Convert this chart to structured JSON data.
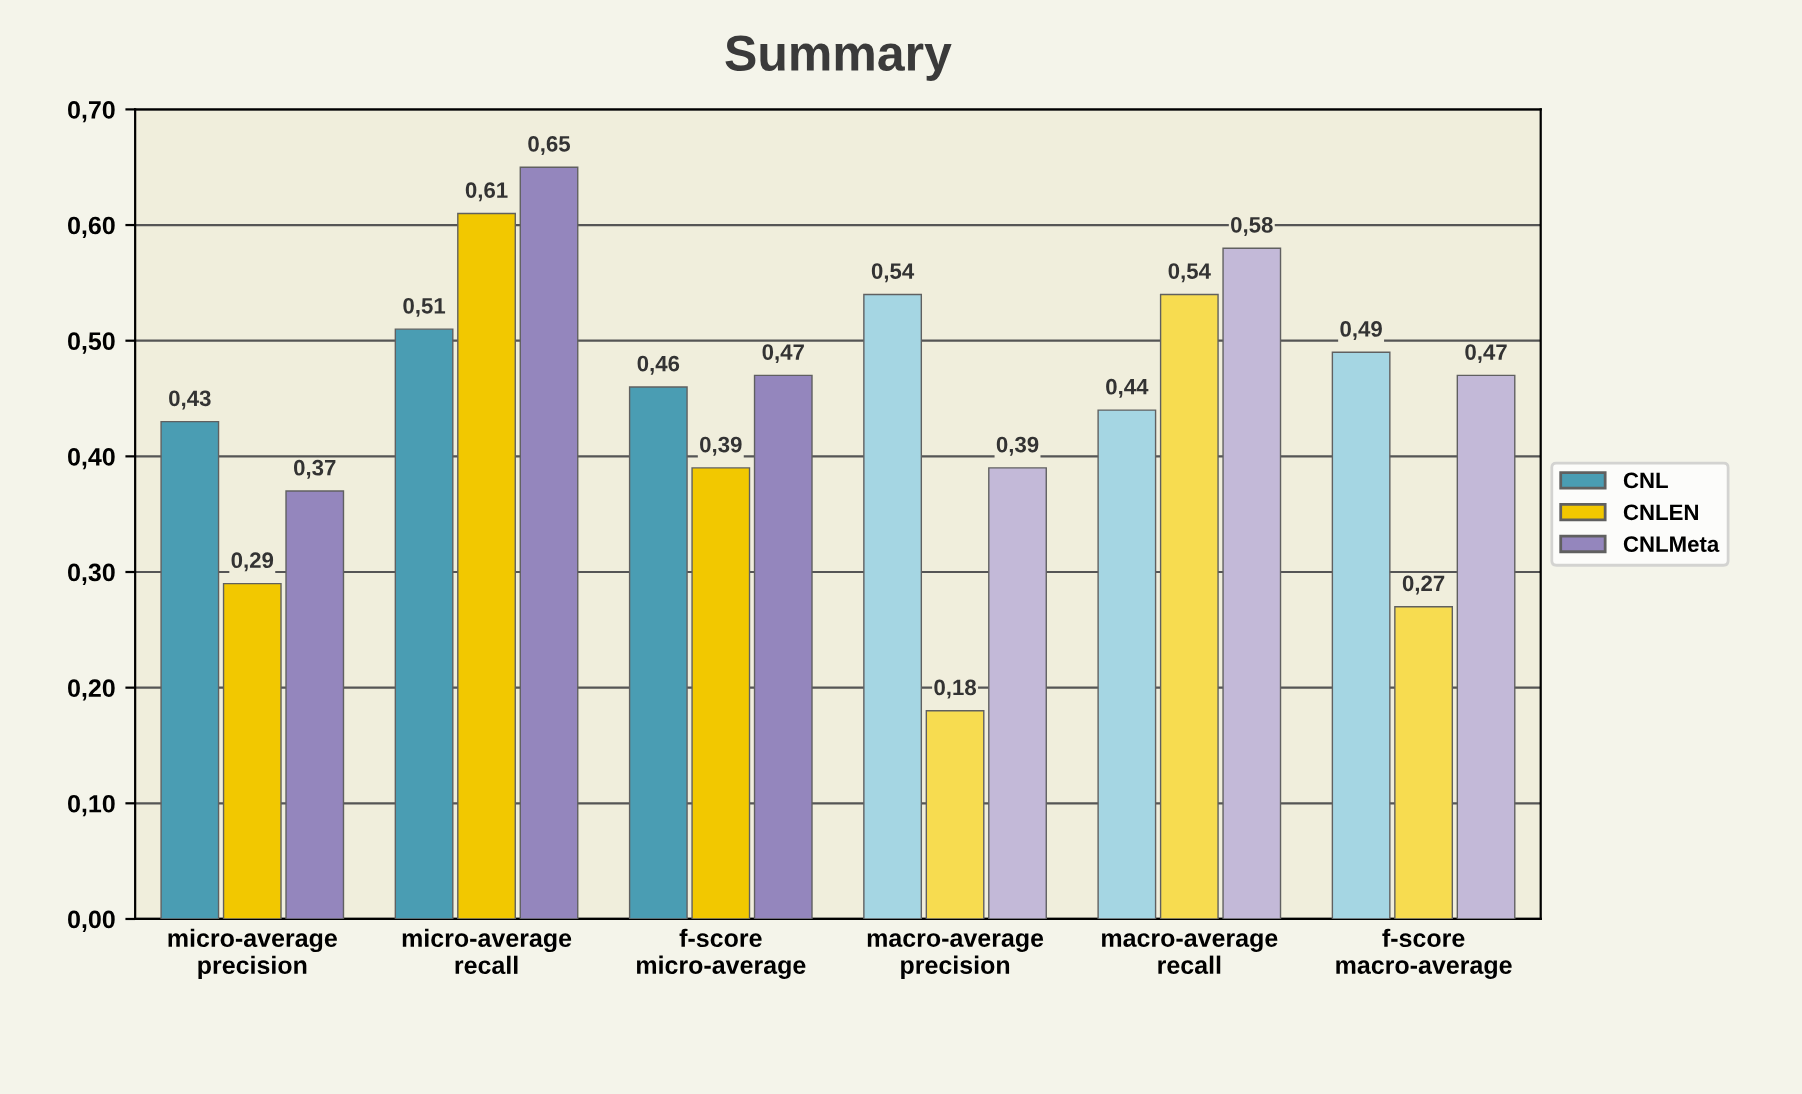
{
  "chart_data": {
    "type": "bar",
    "title": "Summary",
    "categories": [
      "micro-average precision",
      "micro-average recall",
      "f-score micro-average",
      "macro-average precision",
      "macro-average recall",
      "f-score macro-average"
    ],
    "series": [
      {
        "name": "CNL",
        "color": "#4a9db3",
        "colors": [
          "#4a9db3",
          "#4a9db3",
          "#4a9db3",
          "#a5d6e3",
          "#a5d6e3",
          "#a5d6e3"
        ],
        "values": [
          0.43,
          0.51,
          0.46,
          0.54,
          0.44,
          0.49
        ],
        "value_labels": [
          "0,43",
          "0,51",
          "0,46",
          "0,54",
          "0,44",
          "0,49"
        ]
      },
      {
        "name": "CNLEN",
        "color": "#f2c800",
        "colors": [
          "#f2c800",
          "#f2c800",
          "#f2c800",
          "#f7dc50",
          "#f7dc50",
          "#f7dc50"
        ],
        "values": [
          0.29,
          0.61,
          0.39,
          0.18,
          0.54,
          0.27
        ],
        "value_labels": [
          "0,29",
          "0,61",
          "0,39",
          "0,18",
          "0,54",
          "0,27"
        ]
      },
      {
        "name": "CNLMeta",
        "color": "#9486bd",
        "colors": [
          "#9486bd",
          "#9486bd",
          "#9486bd",
          "#c3b9d8",
          "#c3b9d8",
          "#c3b9d8"
        ],
        "values": [
          0.37,
          0.65,
          0.47,
          0.39,
          0.58,
          0.47
        ],
        "value_labels": [
          "0,37",
          "0,65",
          "0,47",
          "0,39",
          "0,58",
          "0,47"
        ]
      }
    ],
    "ylim": [
      0,
      0.7
    ],
    "yticks": [
      {
        "value": 0,
        "label": "0,00"
      },
      {
        "value": 0.1,
        "label": "0,10"
      },
      {
        "value": 0.2,
        "label": "0,20"
      },
      {
        "value": 0.3,
        "label": "0,30"
      },
      {
        "value": 0.4,
        "label": "0,40"
      },
      {
        "value": 0.5,
        "label": "0,50"
      },
      {
        "value": 0.6,
        "label": "0,60"
      },
      {
        "value": 0.7,
        "label": "0,70"
      }
    ],
    "grid": "y",
    "legend": "right"
  }
}
